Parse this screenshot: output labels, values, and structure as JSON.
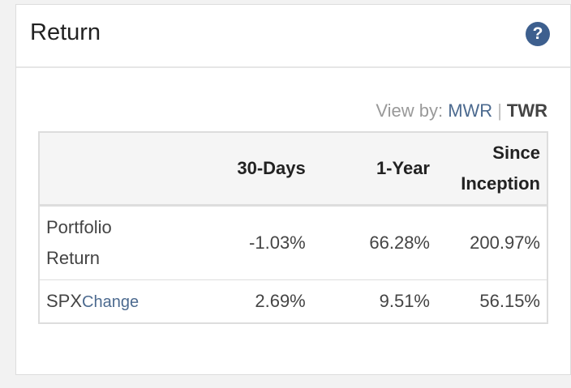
{
  "header": {
    "title": "Return",
    "help_icon": "?"
  },
  "view_by": {
    "label": "View by:",
    "options": [
      "MWR",
      "TWR"
    ],
    "separator": "|"
  },
  "table": {
    "columns": [
      "30-Days",
      "1-Year",
      "Since Inception"
    ],
    "rows": [
      {
        "label": "Portfolio Return",
        "values": [
          "-1.03%",
          "66.28%",
          "200.97%"
        ]
      },
      {
        "label": "SPX",
        "link": "Change",
        "values": [
          "2.69%",
          "9.51%",
          "56.15%"
        ]
      }
    ]
  }
}
